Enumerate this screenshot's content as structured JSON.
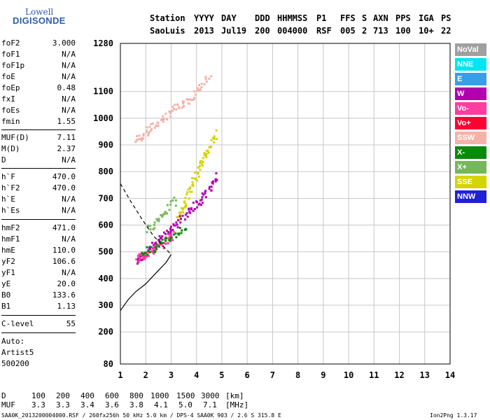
{
  "logo": {
    "line1": "Lowell",
    "line2": "DIGISONDE"
  },
  "header": {
    "labels": [
      "Station",
      "YYYY",
      "DAY",
      "DDD",
      "HHMMSS",
      "P1",
      "FFS",
      "S",
      "AXN",
      "PPS",
      "IGA",
      "PS"
    ],
    "values": [
      "SaoLuis",
      "2013",
      "Jul19",
      "200",
      "004000",
      "RSF",
      "005",
      "2",
      "713",
      "100",
      "10+",
      "22"
    ]
  },
  "parameters": [
    {
      "name": "foF2",
      "value": "3.000"
    },
    {
      "name": "foF1",
      "value": "N/A"
    },
    {
      "name": "foF1p",
      "value": "N/A"
    },
    {
      "name": "foE",
      "value": "N/A"
    },
    {
      "name": "foEp",
      "value": "0.48"
    },
    {
      "name": "fxI",
      "value": "N/A"
    },
    {
      "name": "foEs",
      "value": "N/A"
    },
    {
      "name": "fmin",
      "value": "1.55"
    },
    {
      "name": "MUF(D)",
      "value": "7.11"
    },
    {
      "name": "M(D)",
      "value": "2.37"
    },
    {
      "name": "D",
      "value": "N/A"
    },
    {
      "name": "h`F",
      "value": "470.0"
    },
    {
      "name": "h`F2",
      "value": "470.0"
    },
    {
      "name": "h`E",
      "value": "N/A"
    },
    {
      "name": "h`Es",
      "value": "N/A"
    },
    {
      "name": "hmF2",
      "value": "471.0"
    },
    {
      "name": "hmF1",
      "value": "N/A"
    },
    {
      "name": "hmE",
      "value": "110.0"
    },
    {
      "name": "yF2",
      "value": "106.6"
    },
    {
      "name": "yF1",
      "value": "N/A"
    },
    {
      "name": "yE",
      "value": "20.0"
    },
    {
      "name": "B0",
      "value": "133.6"
    },
    {
      "name": "B1",
      "value": "1.13"
    },
    {
      "name": "C-level",
      "value": "55"
    }
  ],
  "auto": {
    "label": "Auto:",
    "program": "Artist5",
    "version": "500200"
  },
  "legend": [
    {
      "label": "NoVal",
      "color": "#a0a0a0"
    },
    {
      "label": "NNE",
      "color": "#00e5ee"
    },
    {
      "label": "E",
      "color": "#3a9de8"
    },
    {
      "label": "W",
      "color": "#b000b0"
    },
    {
      "label": "Vo-",
      "color": "#ff3ca0"
    },
    {
      "label": "Vo+",
      "color": "#ff0033"
    },
    {
      "label": "SSW",
      "color": "#f4b3a8"
    },
    {
      "label": "X-",
      "color": "#0a8a0a"
    },
    {
      "label": "X+",
      "color": "#74b85a"
    },
    {
      "label": "SSE",
      "color": "#d4d400"
    },
    {
      "label": "NNW",
      "color": "#2020d8"
    }
  ],
  "mufTable": {
    "dLabel": "D",
    "dValues": [
      "100",
      "200",
      "400",
      "600",
      "800",
      "1000",
      "1500",
      "3000"
    ],
    "dUnit": "[km]",
    "mufLabel": "MUF",
    "mufValues": [
      "3.3",
      "3.3",
      "3.4",
      "3.6",
      "3.8",
      "4.1",
      "5.0",
      "7.1"
    ],
    "mufUnit": "[MHz]"
  },
  "footer": {
    "left": "SAA0K_2013200004000.RSF / 260fx256h 50 kHz 5.0 km / DPS-4 SAA0K 903 / 2.6 S 315.8 E",
    "right": "Ion2Png 1.3.17"
  },
  "chart_data": {
    "type": "scatter",
    "xlim": [
      1,
      14
    ],
    "ylim": [
      80,
      1280
    ],
    "xticks": [
      "1",
      "2",
      "3",
      "4",
      "5",
      "6",
      "7",
      "8",
      "9",
      "10",
      "11",
      "12",
      "13",
      "14"
    ],
    "yticks": [
      "80",
      "200",
      "300",
      "400",
      "500",
      "600",
      "700",
      "800",
      "900",
      "1000",
      "1100",
      "1280"
    ],
    "grid": true,
    "profile_curve": [
      [
        1.0,
        280
      ],
      [
        1.3,
        320
      ],
      [
        1.6,
        350
      ],
      [
        2.0,
        380
      ],
      [
        2.4,
        420
      ],
      [
        2.8,
        460
      ],
      [
        3.0,
        490
      ]
    ],
    "dashed_curve": [
      [
        1.0,
        755
      ],
      [
        1.4,
        690
      ],
      [
        1.9,
        615
      ],
      [
        2.3,
        560
      ],
      [
        2.6,
        530
      ],
      [
        2.9,
        500
      ],
      [
        3.0,
        490
      ]
    ],
    "traces": [
      {
        "mode": "SSW",
        "points": [
          [
            1.6,
            920
          ],
          [
            2.0,
            950
          ],
          [
            2.5,
            990
          ],
          [
            3.0,
            1030
          ],
          [
            3.5,
            1060
          ],
          [
            4.0,
            1100
          ],
          [
            4.5,
            1160
          ]
        ]
      },
      {
        "mode": "SSE",
        "points": [
          [
            3.2,
            620
          ],
          [
            3.5,
            680
          ],
          [
            3.8,
            760
          ],
          [
            4.1,
            820
          ],
          [
            4.4,
            880
          ],
          [
            4.8,
            950
          ]
        ]
      },
      {
        "mode": "W",
        "points": [
          [
            1.6,
            470
          ],
          [
            2.0,
            500
          ],
          [
            2.5,
            550
          ],
          [
            3.0,
            590
          ],
          [
            3.5,
            640
          ],
          [
            4.0,
            680
          ],
          [
            4.4,
            730
          ],
          [
            4.8,
            790
          ]
        ]
      },
      {
        "mode": "Vo-",
        "points": [
          [
            1.6,
            480
          ],
          [
            1.9,
            490
          ],
          [
            2.3,
            510
          ],
          [
            2.7,
            540
          ],
          [
            3.1,
            570
          ]
        ]
      },
      {
        "mode": "X-",
        "points": [
          [
            1.8,
            500
          ],
          [
            2.4,
            520
          ],
          [
            3.0,
            560
          ],
          [
            3.6,
            600
          ]
        ]
      },
      {
        "mode": "X+",
        "points": [
          [
            2.0,
            580
          ],
          [
            2.6,
            640
          ],
          [
            3.2,
            700
          ]
        ]
      }
    ]
  }
}
